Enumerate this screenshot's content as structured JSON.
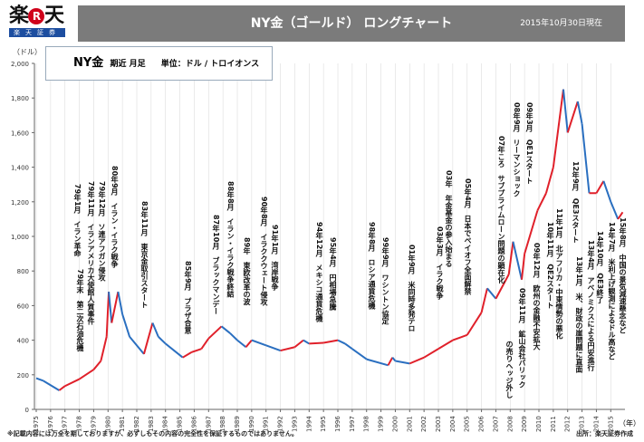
{
  "header": {
    "logo_text": "楽天証券",
    "title": "NY金（ゴールド） ロングチャート",
    "date": "2015年10月30日現在"
  },
  "legend": {
    "name": "NY金",
    "period": "期近 月足",
    "unit": "単位：ドル / トロイオンス"
  },
  "footer": {
    "disclaimer": "※記載内容には万全を期しておりますが、必ずしもその内容の完全性を保証するものではありません。",
    "source": "出所：楽天証券作成"
  },
  "chart_data": {
    "type": "line",
    "style": "candlestick-like monthly, up red / down blue",
    "colors": {
      "up": "#e0202a",
      "down": "#2a6fc0",
      "grid": "#dddddd"
    },
    "ylabel": "（ドル）",
    "xlabel": "（年）",
    "ylim": [
      0,
      2000
    ],
    "xlim": [
      1975,
      2015.99
    ],
    "grid": true,
    "yticks": [
      0,
      200,
      400,
      600,
      800,
      1000,
      1200,
      1400,
      1600,
      1800,
      2000
    ],
    "ytick_labels": [
      "0",
      "200",
      "400",
      "600",
      "800",
      "1,000",
      "1,200",
      "1,400",
      "1,600",
      "1,800",
      "2,000"
    ],
    "xticks": [
      "1975",
      "1976",
      "1977",
      "1978",
      "1979",
      "1980",
      "1981",
      "1982",
      "1983",
      "1984",
      "1985",
      "1986",
      "1987",
      "1988",
      "1989",
      "1990",
      "1991",
      "1992",
      "1993",
      "1994",
      "1995",
      "1996",
      "1997",
      "1998",
      "1999",
      "2000",
      "2001",
      "2002",
      "2003",
      "2004",
      "2005",
      "2006",
      "2007",
      "2008",
      "2009",
      "2010",
      "2011",
      "2012",
      "2013",
      "2014",
      "2015"
    ],
    "points": [
      [
        1975,
        180
      ],
      [
        1975.5,
        165
      ],
      [
        1976.6,
        110
      ],
      [
        1977,
        135
      ],
      [
        1978,
        175
      ],
      [
        1979,
        230
      ],
      [
        1979.5,
        280
      ],
      [
        1979.9,
        420
      ],
      [
        1980.05,
        680
      ],
      [
        1980.25,
        500
      ],
      [
        1980.7,
        680
      ],
      [
        1981,
        550
      ],
      [
        1981.5,
        420
      ],
      [
        1982.5,
        320
      ],
      [
        1983.1,
        500
      ],
      [
        1983.5,
        420
      ],
      [
        1984,
        380
      ],
      [
        1985.2,
        300
      ],
      [
        1985.8,
        330
      ],
      [
        1986.5,
        350
      ],
      [
        1987,
        410
      ],
      [
        1987.9,
        480
      ],
      [
        1988.5,
        440
      ],
      [
        1989,
        400
      ],
      [
        1989.6,
        360
      ],
      [
        1990,
        400
      ],
      [
        1991,
        370
      ],
      [
        1992,
        340
      ],
      [
        1993,
        360
      ],
      [
        1993.6,
        400
      ],
      [
        1994,
        380
      ],
      [
        1995,
        385
      ],
      [
        1996,
        400
      ],
      [
        1996.5,
        380
      ],
      [
        1997,
        350
      ],
      [
        1998,
        290
      ],
      [
        1999.5,
        255
      ],
      [
        1999.8,
        300
      ],
      [
        2000,
        280
      ],
      [
        2001,
        265
      ],
      [
        2002,
        300
      ],
      [
        2003,
        350
      ],
      [
        2004,
        400
      ],
      [
        2005,
        430
      ],
      [
        2006,
        560
      ],
      [
        2006.4,
        700
      ],
      [
        2007,
        640
      ],
      [
        2007.9,
        780
      ],
      [
        2008.2,
        970
      ],
      [
        2008.8,
        750
      ],
      [
        2009,
        900
      ],
      [
        2009.9,
        1150
      ],
      [
        2010.5,
        1250
      ],
      [
        2011,
        1400
      ],
      [
        2011.7,
        1850
      ],
      [
        2012,
        1600
      ],
      [
        2012.7,
        1780
      ],
      [
        2013,
        1650
      ],
      [
        2013.5,
        1250
      ],
      [
        2014,
        1250
      ],
      [
        2014.5,
        1320
      ],
      [
        2015,
        1200
      ],
      [
        2015.5,
        1100
      ],
      [
        2015.83,
        1140
      ]
    ],
    "annotations": [
      {
        "text": "79年1月　イラン革命"
      },
      {
        "text": "79年11月　イランアメリカ大使館人質事件"
      },
      {
        "text": "79年12月　ソ連アフガン侵攻"
      },
      {
        "text": "80年9月　イラン・イラク戦争"
      },
      {
        "text": "79年末　第二次石油危機"
      },
      {
        "text": "83年11月　東京金取引スタート"
      },
      {
        "text": "85年9月　プラザ合意"
      },
      {
        "text": "87年10月　ブラックマンデー"
      },
      {
        "text": "88年8月　イラン・イラク戦争終結"
      },
      {
        "text": "89年　東欧改革の波"
      },
      {
        "text": "90年8月　イラククウェート侵攻"
      },
      {
        "text": "91年1月　湾岸戦争"
      },
      {
        "text": "94年12月　メキシコ通貨危機"
      },
      {
        "text": "95年4月　円相場急騰"
      },
      {
        "text": "98年8月　ロシア通貨危機"
      },
      {
        "text": "99年9月　ワシントン協定"
      },
      {
        "text": "01年9月　米同時多発テロ"
      },
      {
        "text": "03年3月　イラク戦争"
      },
      {
        "text": "03年　年金基金の参入始まる"
      },
      {
        "text": "05年4月　日本でペイオフ全面解禁"
      },
      {
        "text": "07年ころ　サブプライムローン問題の顕在化"
      },
      {
        "text": "08年9月　リーマンショック"
      },
      {
        "text": "09年3月　QE1スタート"
      },
      {
        "text": "09年11月　鉱山会社バリック"
      },
      {
        "text": "の売りヘッジ外し"
      },
      {
        "text": "09年12月　欧州の金融不安拡大"
      },
      {
        "text": "10年11月　QE2スタート"
      },
      {
        "text": "11年1月　北アフリカ・中東情勢の悪化"
      },
      {
        "text": "12年9月　QE3スタート"
      },
      {
        "text": "13年1月　米、財政の崖問題に直面"
      },
      {
        "text": "13年4月　アベノミクスによる円安進行"
      },
      {
        "text": "14年10月　QE3終了"
      },
      {
        "text": "14年7月　米利上げ観測によるドル高など"
      },
      {
        "text": "15年8月　中国の景気減速懸念など"
      }
    ]
  }
}
